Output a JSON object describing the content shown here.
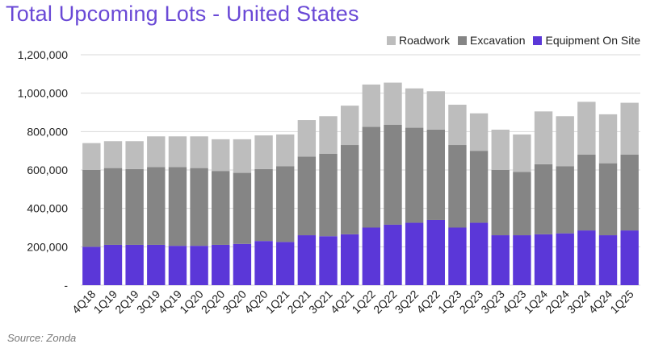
{
  "title": "Total Upcoming Lots - United States",
  "source": "Source: Zonda",
  "colors": {
    "title": "#6a49d6",
    "roadwork": "#bdbdbd",
    "excavation": "#858585",
    "equipment": "#5b37d8",
    "grid": "#d9d9d9"
  },
  "chart_data": {
    "type": "bar",
    "stacked": true,
    "title": "Total Upcoming Lots - United States",
    "xlabel": "",
    "ylabel": "",
    "ylim": [
      0,
      1200000
    ],
    "y_ticks": [
      0,
      200000,
      400000,
      600000,
      800000,
      1000000,
      1200000
    ],
    "y_tick_labels": [
      "-",
      "200,000",
      "400,000",
      "600,000",
      "800,000",
      "1,000,000",
      "1,200,000"
    ],
    "grid": true,
    "legend_position": "top-right",
    "categories": [
      "4Q18",
      "1Q19",
      "2Q19",
      "3Q19",
      "4Q19",
      "1Q20",
      "2Q20",
      "3Q20",
      "4Q20",
      "1Q21",
      "2Q21",
      "3Q21",
      "4Q21",
      "1Q22",
      "2Q22",
      "3Q22",
      "4Q22",
      "1Q23",
      "2Q23",
      "3Q23",
      "4Q23",
      "1Q24",
      "2Q24",
      "3Q24",
      "4Q24",
      "1Q25"
    ],
    "series": [
      {
        "name": "Equipment On Site",
        "color": "#5b37d8",
        "values": [
          200000,
          210000,
          210000,
          210000,
          205000,
          205000,
          210000,
          215000,
          230000,
          225000,
          260000,
          255000,
          265000,
          300000,
          315000,
          325000,
          340000,
          300000,
          325000,
          260000,
          260000,
          265000,
          270000,
          285000,
          260000,
          285000
        ]
      },
      {
        "name": "Excavation",
        "color": "#858585",
        "values": [
          400000,
          400000,
          395000,
          405000,
          410000,
          405000,
          385000,
          370000,
          375000,
          395000,
          410000,
          430000,
          465000,
          525000,
          520000,
          495000,
          470000,
          430000,
          375000,
          340000,
          330000,
          365000,
          350000,
          395000,
          375000,
          395000
        ]
      },
      {
        "name": "Roadwork",
        "color": "#bdbdbd",
        "values": [
          140000,
          140000,
          145000,
          160000,
          160000,
          165000,
          165000,
          175000,
          175000,
          165000,
          190000,
          195000,
          205000,
          220000,
          220000,
          205000,
          200000,
          210000,
          195000,
          210000,
          195000,
          275000,
          260000,
          275000,
          255000,
          270000
        ]
      }
    ]
  },
  "legend": [
    {
      "label": "Roadwork",
      "color": "#bdbdbd"
    },
    {
      "label": "Excavation",
      "color": "#858585"
    },
    {
      "label": "Equipment On Site",
      "color": "#5b37d8"
    }
  ]
}
